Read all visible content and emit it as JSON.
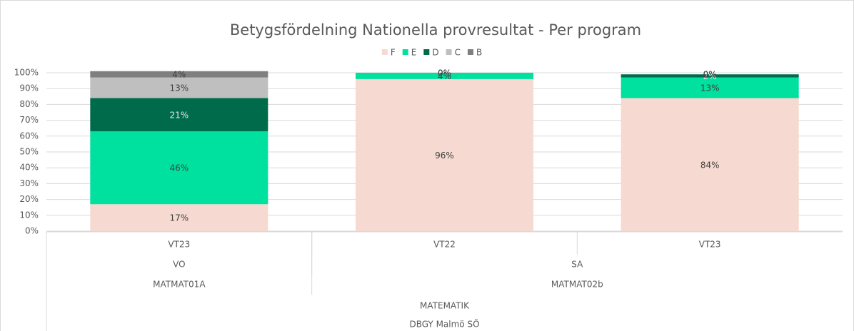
{
  "chart_data": {
    "type": "bar",
    "stacked": true,
    "title": "Betygsfördelning Nationella provresultat - Per program",
    "legend": "top",
    "grid": true,
    "ylim": [
      0,
      100
    ],
    "yticks": [
      {
        "value": 0,
        "label": "0%"
      },
      {
        "value": 10,
        "label": "10%"
      },
      {
        "value": 20,
        "label": "20%"
      },
      {
        "value": 30,
        "label": "30%"
      },
      {
        "value": 40,
        "label": "40%"
      },
      {
        "value": 50,
        "label": "50%"
      },
      {
        "value": 60,
        "label": "60%"
      },
      {
        "value": 70,
        "label": "70%"
      },
      {
        "value": 80,
        "label": "80%"
      },
      {
        "value": 90,
        "label": "90%"
      },
      {
        "value": 100,
        "label": "100%"
      }
    ],
    "category_tree": [
      {
        "label": "DBGY Malmö SÖ",
        "children": [
          {
            "label": "MATEMATIK",
            "children": [
              {
                "label": "MATMAT01A",
                "children": [
                  {
                    "label": "VO",
                    "children": [
                      "VT23"
                    ]
                  }
                ]
              },
              {
                "label": "MATMAT02b",
                "children": [
                  {
                    "label": "SA",
                    "children": [
                      "VT22",
                      "VT23"
                    ]
                  }
                ]
              }
            ]
          }
        ]
      }
    ],
    "series": [
      {
        "name": "F",
        "color": "#f6d9d0",
        "values": [
          17,
          96,
          84
        ],
        "value_labels": [
          "17%",
          "96%",
          "84%"
        ]
      },
      {
        "name": "E",
        "color": "#00e09f",
        "values": [
          46,
          4,
          13
        ],
        "value_labels": [
          "46%",
          "4%",
          "13%"
        ]
      },
      {
        "name": "D",
        "color": "#006b4a",
        "values": [
          21,
          0,
          2
        ],
        "value_labels": [
          "21%",
          "0%",
          "2%"
        ]
      },
      {
        "name": "C",
        "color": "#bfbfbf",
        "values": [
          13,
          0,
          0
        ],
        "value_labels": [
          "13%",
          "0%",
          "0%"
        ]
      },
      {
        "name": "B",
        "color": "#7f7f7f",
        "values": [
          4,
          0,
          0
        ],
        "value_labels": [
          "4%",
          "0%",
          "0%"
        ]
      }
    ]
  }
}
